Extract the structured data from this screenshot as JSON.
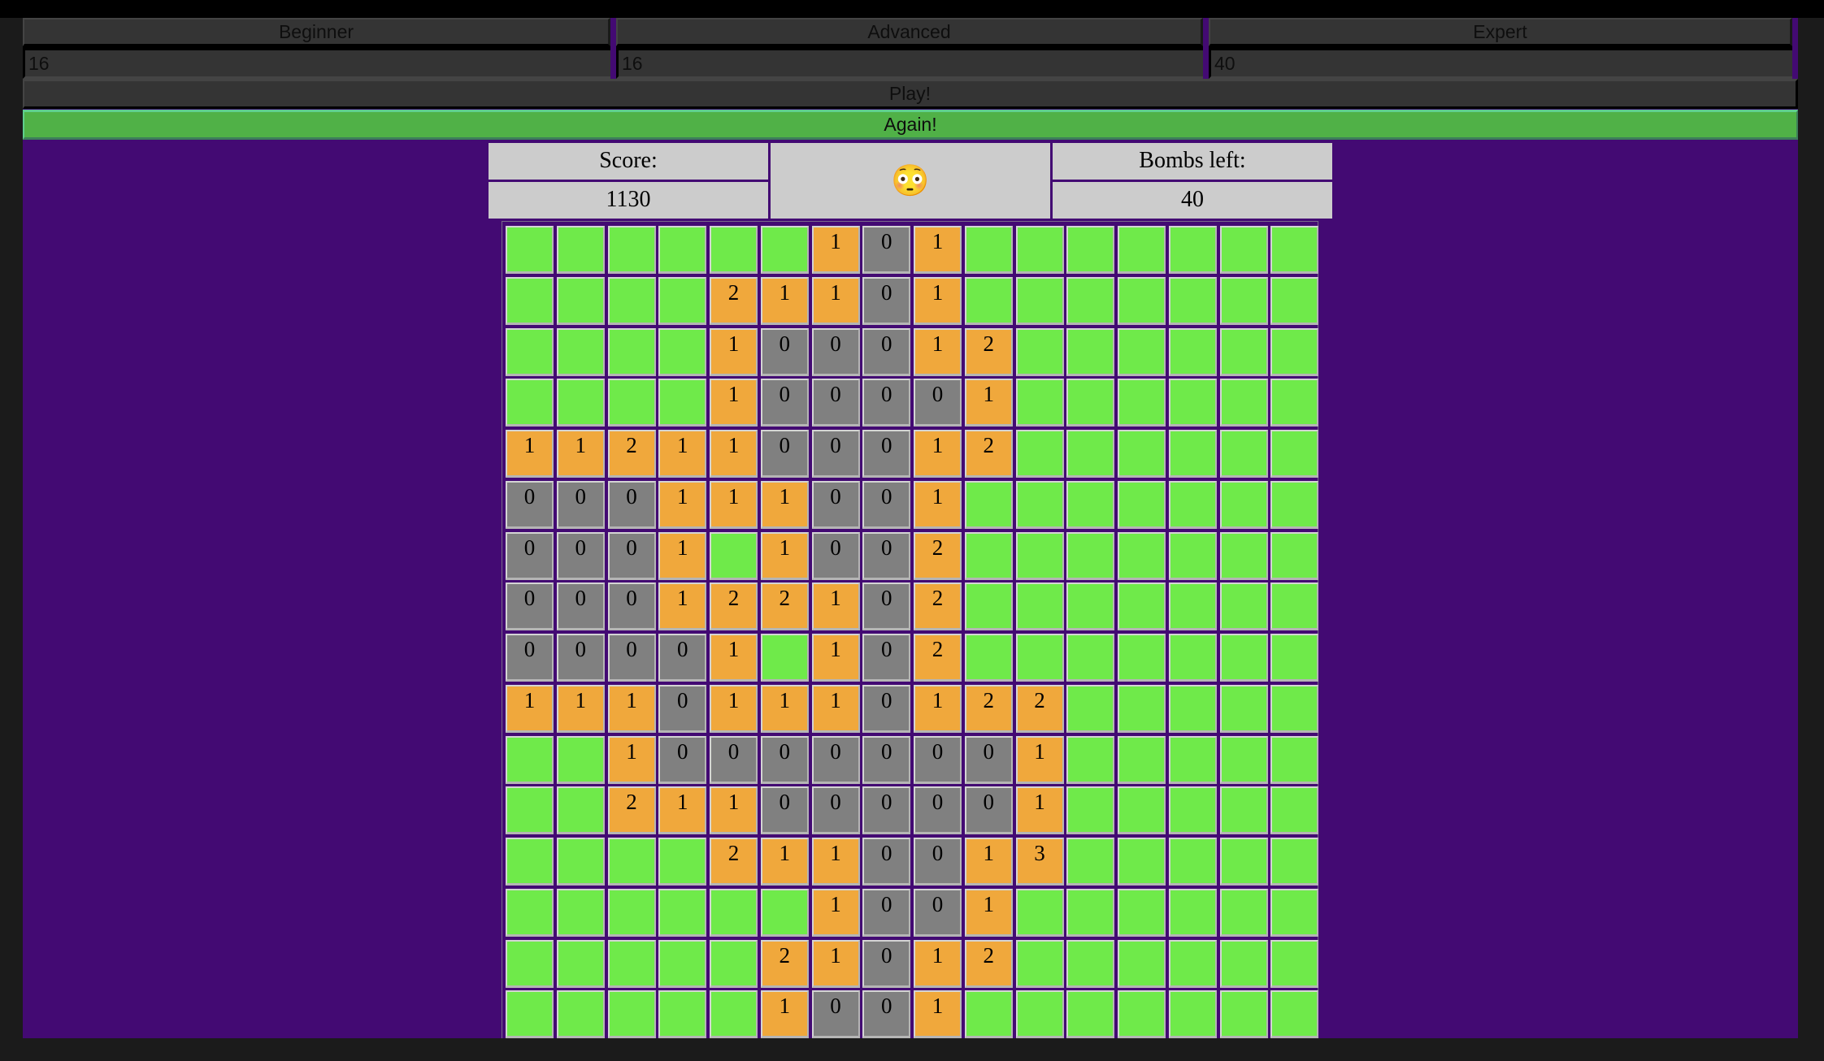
{
  "levels": [
    {
      "label": "Beginner",
      "value": "16"
    },
    {
      "label": "Advanced",
      "value": "16"
    },
    {
      "label": "Expert",
      "value": "40"
    }
  ],
  "play_label": "Play!",
  "again_label": "Again!",
  "scoreboard": {
    "score_label": "Score:",
    "score_value": "1130",
    "face": "😳",
    "face_icon": "flushed-face-icon",
    "bombs_label": "Bombs left:",
    "bombs_value": "40"
  },
  "colors": {
    "background": "#1b1b1b",
    "container": "#430a73",
    "hidden_cell": "#6fea4a",
    "number_cell": "#f0a83c",
    "zero_cell": "#808080",
    "again_button": "#50b147",
    "panel": "#cccccc"
  },
  "board": {
    "rows": 16,
    "cols": 16,
    "legend": {
      "H": "hidden (unrevealed)",
      "0-9": "revealed count"
    },
    "cells": [
      [
        "H",
        "H",
        "H",
        "H",
        "H",
        "H",
        "1",
        "0",
        "1",
        "H",
        "H",
        "H",
        "H",
        "H",
        "H",
        "H"
      ],
      [
        "H",
        "H",
        "H",
        "H",
        "2",
        "1",
        "1",
        "0",
        "1",
        "H",
        "H",
        "H",
        "H",
        "H",
        "H",
        "H"
      ],
      [
        "H",
        "H",
        "H",
        "H",
        "1",
        "0",
        "0",
        "0",
        "1",
        "2",
        "H",
        "H",
        "H",
        "H",
        "H",
        "H"
      ],
      [
        "H",
        "H",
        "H",
        "H",
        "1",
        "0",
        "0",
        "0",
        "0",
        "1",
        "H",
        "H",
        "H",
        "H",
        "H",
        "H"
      ],
      [
        "1",
        "1",
        "2",
        "1",
        "1",
        "0",
        "0",
        "0",
        "1",
        "2",
        "H",
        "H",
        "H",
        "H",
        "H",
        "H"
      ],
      [
        "0",
        "0",
        "0",
        "1",
        "1",
        "1",
        "0",
        "0",
        "1",
        "H",
        "H",
        "H",
        "H",
        "H",
        "H",
        "H"
      ],
      [
        "0",
        "0",
        "0",
        "1",
        "H",
        "1",
        "0",
        "0",
        "2",
        "H",
        "H",
        "H",
        "H",
        "H",
        "H",
        "H"
      ],
      [
        "0",
        "0",
        "0",
        "1",
        "2",
        "2",
        "1",
        "0",
        "2",
        "H",
        "H",
        "H",
        "H",
        "H",
        "H",
        "H"
      ],
      [
        "0",
        "0",
        "0",
        "0",
        "1",
        "H",
        "1",
        "0",
        "2",
        "H",
        "H",
        "H",
        "H",
        "H",
        "H",
        "H"
      ],
      [
        "1",
        "1",
        "1",
        "0",
        "1",
        "1",
        "1",
        "0",
        "1",
        "2",
        "2",
        "H",
        "H",
        "H",
        "H",
        "H"
      ],
      [
        "H",
        "H",
        "1",
        "0",
        "0",
        "0",
        "0",
        "0",
        "0",
        "0",
        "1",
        "H",
        "H",
        "H",
        "H",
        "H"
      ],
      [
        "H",
        "H",
        "2",
        "1",
        "1",
        "0",
        "0",
        "0",
        "0",
        "0",
        "1",
        "H",
        "H",
        "H",
        "H",
        "H"
      ],
      [
        "H",
        "H",
        "H",
        "H",
        "2",
        "1",
        "1",
        "0",
        "0",
        "1",
        "3",
        "H",
        "H",
        "H",
        "H",
        "H"
      ],
      [
        "H",
        "H",
        "H",
        "H",
        "H",
        "H",
        "1",
        "0",
        "0",
        "1",
        "H",
        "H",
        "H",
        "H",
        "H",
        "H"
      ],
      [
        "H",
        "H",
        "H",
        "H",
        "H",
        "2",
        "1",
        "0",
        "1",
        "2",
        "H",
        "H",
        "H",
        "H",
        "H",
        "H"
      ],
      [
        "H",
        "H",
        "H",
        "H",
        "H",
        "1",
        "0",
        "0",
        "1",
        "H",
        "H",
        "H",
        "H",
        "H",
        "H",
        "H"
      ]
    ]
  }
}
